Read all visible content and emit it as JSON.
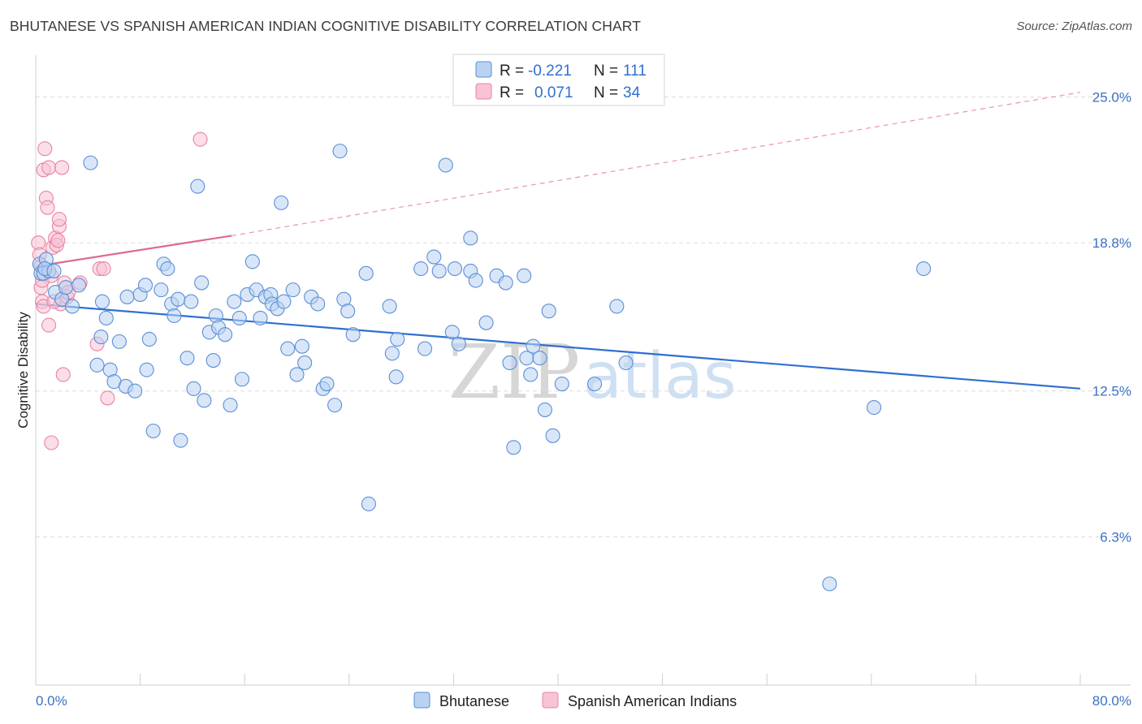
{
  "header": {
    "title": "BHUTANESE VS SPANISH AMERICAN INDIAN COGNITIVE DISABILITY CORRELATION CHART",
    "source": "Source: ZipAtlas.com"
  },
  "colors": {
    "bhutanese_fill": "#b8d2f2",
    "bhutanese_stroke": "#5b8fd6",
    "bhutanese_line": "#2f6fd0",
    "spanish_fill": "#f8c3d3",
    "spanish_stroke": "#e884a5",
    "spanish_line": "#e06892",
    "grid": "#dcdcdc",
    "axis_text": "#3a72c4"
  },
  "watermark": {
    "left": "ZIP",
    "right": "atlas"
  },
  "legend": {
    "r_label": "R =",
    "n_label": "N =",
    "rows": [
      {
        "r": "-0.221",
        "n": "111"
      },
      {
        "r": "0.071",
        "n": "34"
      }
    ]
  },
  "chart_data": {
    "type": "scatter",
    "title": "BHUTANESE VS SPANISH AMERICAN INDIAN COGNITIVE DISABILITY CORRELATION CHART",
    "xlabel": "",
    "ylabel": "Cognitive Disability",
    "xlim": [
      0,
      80
    ],
    "ylim": [
      0,
      26.5
    ],
    "x_tick_labels": [
      "0.0%",
      "80.0%"
    ],
    "y_ticks": [
      6.3,
      12.5,
      18.8,
      25.0
    ],
    "y_tick_labels": [
      "6.3%",
      "12.5%",
      "18.8%",
      "25.0%"
    ],
    "grid": true,
    "legend_bottom": [
      "Bhutanese",
      "Spanish American Indians"
    ],
    "series": [
      {
        "name": "Bhutanese",
        "r": -0.221,
        "n": 111,
        "trend": {
          "x": [
            0,
            80
          ],
          "y": [
            16.2,
            12.6
          ]
        },
        "points": [
          [
            0.3,
            17.9
          ],
          [
            0.4,
            17.5
          ],
          [
            0.6,
            17.5
          ],
          [
            1.0,
            17.6
          ],
          [
            0.8,
            18.1
          ],
          [
            1.5,
            16.7
          ],
          [
            2.0,
            16.4
          ],
          [
            2.3,
            16.9
          ],
          [
            2.8,
            16.1
          ],
          [
            3.3,
            17.0
          ],
          [
            4.2,
            22.2
          ],
          [
            5.1,
            16.3
          ],
          [
            5.4,
            15.6
          ],
          [
            5.0,
            14.8
          ],
          [
            4.7,
            13.6
          ],
          [
            5.7,
            13.4
          ],
          [
            6.0,
            12.9
          ],
          [
            6.4,
            14.6
          ],
          [
            7.0,
            16.5
          ],
          [
            6.9,
            12.7
          ],
          [
            7.6,
            12.5
          ],
          [
            8.0,
            16.6
          ],
          [
            8.4,
            17.0
          ],
          [
            8.5,
            13.4
          ],
          [
            8.7,
            14.7
          ],
          [
            9.0,
            10.8
          ],
          [
            9.6,
            16.8
          ],
          [
            9.8,
            17.9
          ],
          [
            10.1,
            17.7
          ],
          [
            10.4,
            16.2
          ],
          [
            10.6,
            15.7
          ],
          [
            10.9,
            16.4
          ],
          [
            11.1,
            10.4
          ],
          [
            11.6,
            13.9
          ],
          [
            11.9,
            16.3
          ],
          [
            12.1,
            12.6
          ],
          [
            12.4,
            21.2
          ],
          [
            12.7,
            17.1
          ],
          [
            12.9,
            12.1
          ],
          [
            13.3,
            15.0
          ],
          [
            13.6,
            13.8
          ],
          [
            13.8,
            15.7
          ],
          [
            14.0,
            15.2
          ],
          [
            14.5,
            14.9
          ],
          [
            14.9,
            11.9
          ],
          [
            15.2,
            16.3
          ],
          [
            15.6,
            15.6
          ],
          [
            15.8,
            13.0
          ],
          [
            16.2,
            16.6
          ],
          [
            16.6,
            18.0
          ],
          [
            16.9,
            16.8
          ],
          [
            17.2,
            15.6
          ],
          [
            17.6,
            16.5
          ],
          [
            18.0,
            16.6
          ],
          [
            18.1,
            16.2
          ],
          [
            18.5,
            16.0
          ],
          [
            18.8,
            20.5
          ],
          [
            19.0,
            16.3
          ],
          [
            19.3,
            14.3
          ],
          [
            19.7,
            16.8
          ],
          [
            20.0,
            13.2
          ],
          [
            20.4,
            14.4
          ],
          [
            20.6,
            13.7
          ],
          [
            21.1,
            16.5
          ],
          [
            21.6,
            16.2
          ],
          [
            22.0,
            12.6
          ],
          [
            22.3,
            12.8
          ],
          [
            22.9,
            11.9
          ],
          [
            23.3,
            22.7
          ],
          [
            23.6,
            16.4
          ],
          [
            23.9,
            15.9
          ],
          [
            24.3,
            14.9
          ],
          [
            25.3,
            17.5
          ],
          [
            25.5,
            7.7
          ],
          [
            27.1,
            16.1
          ],
          [
            27.3,
            14.1
          ],
          [
            27.6,
            13.1
          ],
          [
            27.7,
            14.7
          ],
          [
            29.5,
            17.7
          ],
          [
            29.8,
            14.3
          ],
          [
            30.5,
            18.2
          ],
          [
            30.9,
            17.6
          ],
          [
            31.4,
            22.1
          ],
          [
            31.9,
            15.0
          ],
          [
            32.1,
            17.7
          ],
          [
            32.4,
            14.5
          ],
          [
            33.3,
            19.0
          ],
          [
            33.3,
            17.6
          ],
          [
            33.7,
            17.2
          ],
          [
            34.5,
            15.4
          ],
          [
            35.3,
            17.4
          ],
          [
            36.0,
            17.1
          ],
          [
            36.3,
            13.7
          ],
          [
            36.6,
            10.1
          ],
          [
            37.4,
            17.4
          ],
          [
            37.6,
            13.9
          ],
          [
            37.9,
            13.2
          ],
          [
            38.1,
            14.4
          ],
          [
            38.6,
            13.9
          ],
          [
            39.0,
            11.7
          ],
          [
            39.3,
            15.9
          ],
          [
            39.6,
            10.6
          ],
          [
            40.3,
            12.8
          ],
          [
            42.8,
            12.8
          ],
          [
            44.5,
            16.1
          ],
          [
            45.2,
            13.7
          ],
          [
            60.8,
            4.3
          ],
          [
            64.2,
            11.8
          ],
          [
            68.0,
            17.7
          ],
          [
            0.7,
            17.7
          ],
          [
            1.4,
            17.6
          ]
        ]
      },
      {
        "name": "Spanish American Indians",
        "r": 0.071,
        "n": 34,
        "trend": {
          "x": [
            0,
            15
          ],
          "y": [
            17.8,
            19.1
          ],
          "extended": {
            "x": [
              15,
              80
            ],
            "y": [
              19.1,
              25.2
            ]
          }
        },
        "points": [
          [
            0.2,
            18.8
          ],
          [
            0.3,
            18.3
          ],
          [
            0.4,
            16.9
          ],
          [
            0.5,
            16.3
          ],
          [
            0.6,
            21.9
          ],
          [
            0.7,
            22.8
          ],
          [
            0.8,
            20.7
          ],
          [
            0.9,
            20.3
          ],
          [
            1.0,
            22.0
          ],
          [
            1.0,
            15.3
          ],
          [
            0.6,
            16.1
          ],
          [
            0.5,
            17.2
          ],
          [
            0.4,
            17.8
          ],
          [
            1.2,
            17.4
          ],
          [
            1.2,
            10.3
          ],
          [
            1.3,
            18.6
          ],
          [
            1.5,
            19.0
          ],
          [
            1.6,
            18.7
          ],
          [
            1.8,
            19.5
          ],
          [
            1.8,
            19.8
          ],
          [
            1.9,
            16.2
          ],
          [
            2.0,
            22.0
          ],
          [
            2.1,
            13.2
          ],
          [
            2.2,
            17.1
          ],
          [
            2.4,
            16.5
          ],
          [
            2.5,
            16.7
          ],
          [
            3.4,
            17.1
          ],
          [
            4.7,
            14.5
          ],
          [
            4.9,
            17.7
          ],
          [
            5.2,
            17.7
          ],
          [
            5.5,
            12.2
          ],
          [
            12.6,
            23.2
          ],
          [
            1.4,
            16.3
          ],
          [
            1.7,
            18.9
          ]
        ]
      }
    ]
  }
}
